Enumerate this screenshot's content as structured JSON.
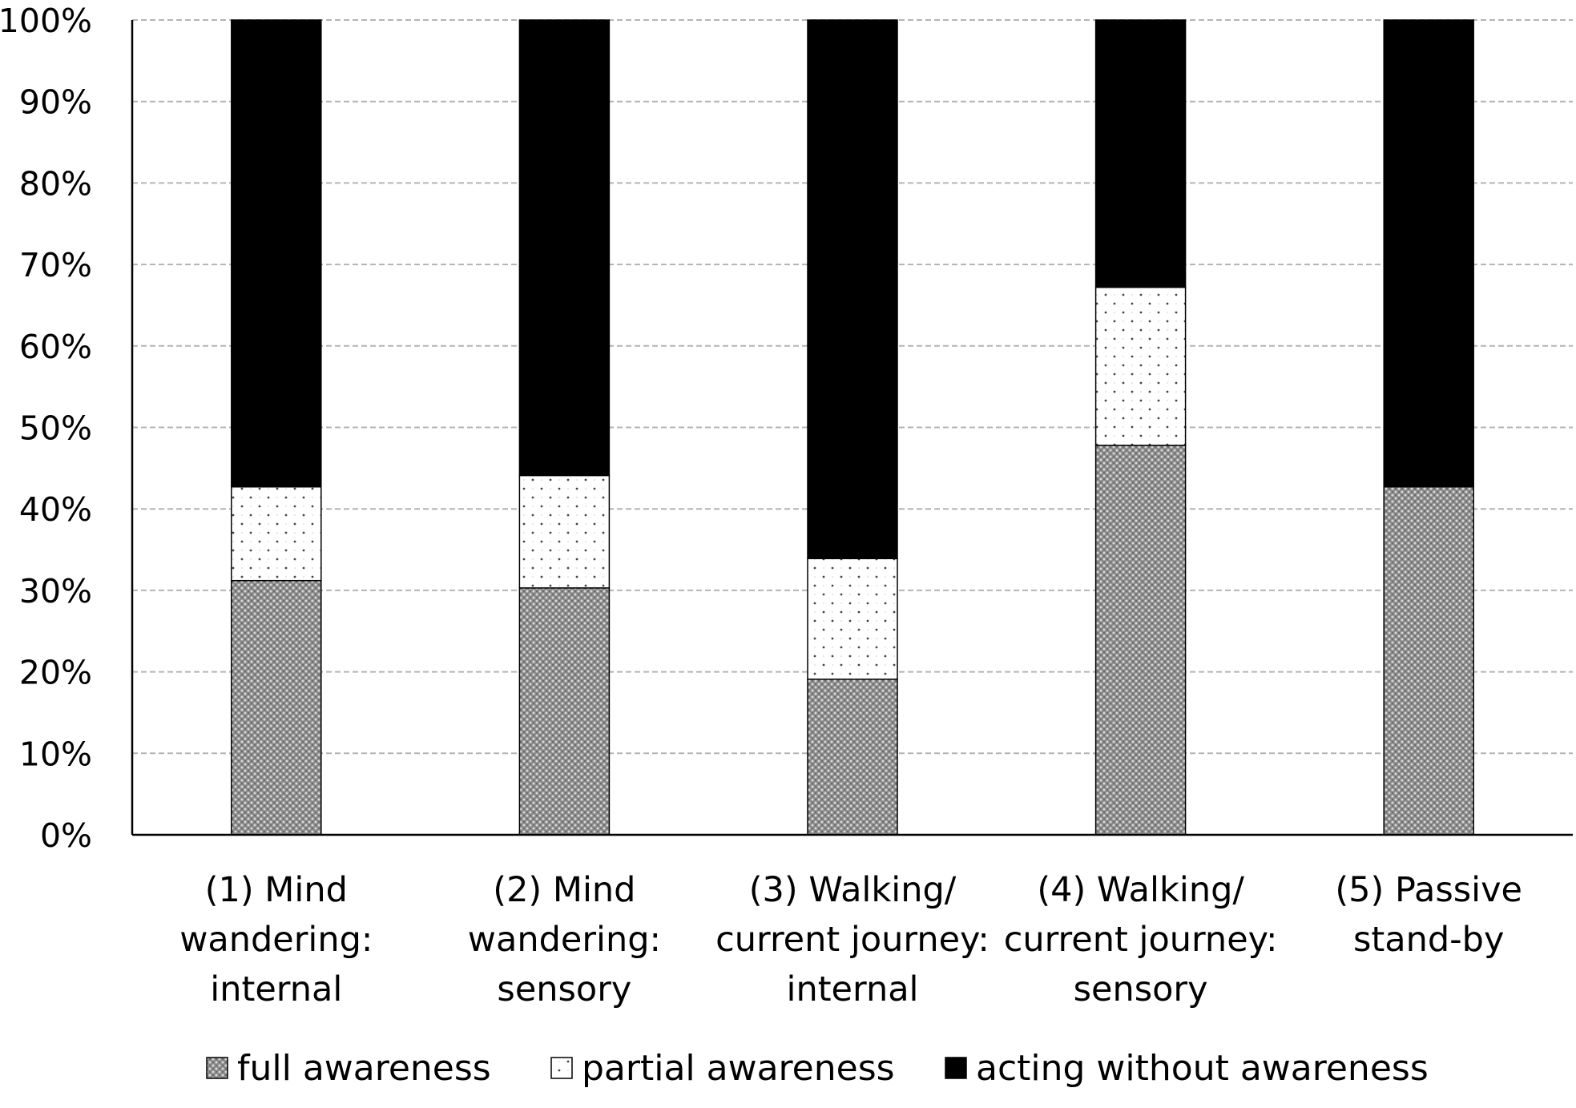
{
  "chart_data": {
    "type": "bar",
    "stacked": true,
    "normalized": true,
    "title": "",
    "xlabel": "",
    "ylabel": "",
    "ylim": [
      0,
      100
    ],
    "y_tick_values": [
      0,
      10,
      20,
      30,
      40,
      50,
      60,
      70,
      80,
      90,
      100
    ],
    "y_tick_labels": [
      "0%",
      "10%",
      "20%",
      "30%",
      "40%",
      "50%",
      "60%",
      "70%",
      "80%",
      "90%",
      "100%"
    ],
    "grid": true,
    "legend_position": "bottom",
    "categories": [
      [
        "(1) Mind",
        "wandering:",
        "internal"
      ],
      [
        "(2) Mind",
        "wandering:",
        "sensory"
      ],
      [
        "(3) Walking/",
        "current journey:",
        "internal"
      ],
      [
        "(4) Walking/",
        "current journey:",
        "sensory"
      ],
      [
        "(5) Passive",
        "stand-by"
      ]
    ],
    "series": [
      {
        "name": "full awareness",
        "pattern": "dense-dots",
        "color": "#8c8c8c",
        "values": [
          31.2,
          30.3,
          19.1,
          47.8,
          42.7
        ]
      },
      {
        "name": "partial awareness",
        "pattern": "sparse-dots",
        "color": "#ffffff",
        "values": [
          11.5,
          13.8,
          14.8,
          19.4,
          0
        ]
      },
      {
        "name": "acting without awareness",
        "pattern": "solid",
        "color": "#000000",
        "values": [
          57.3,
          55.9,
          66.1,
          32.8,
          57.3
        ]
      }
    ]
  }
}
